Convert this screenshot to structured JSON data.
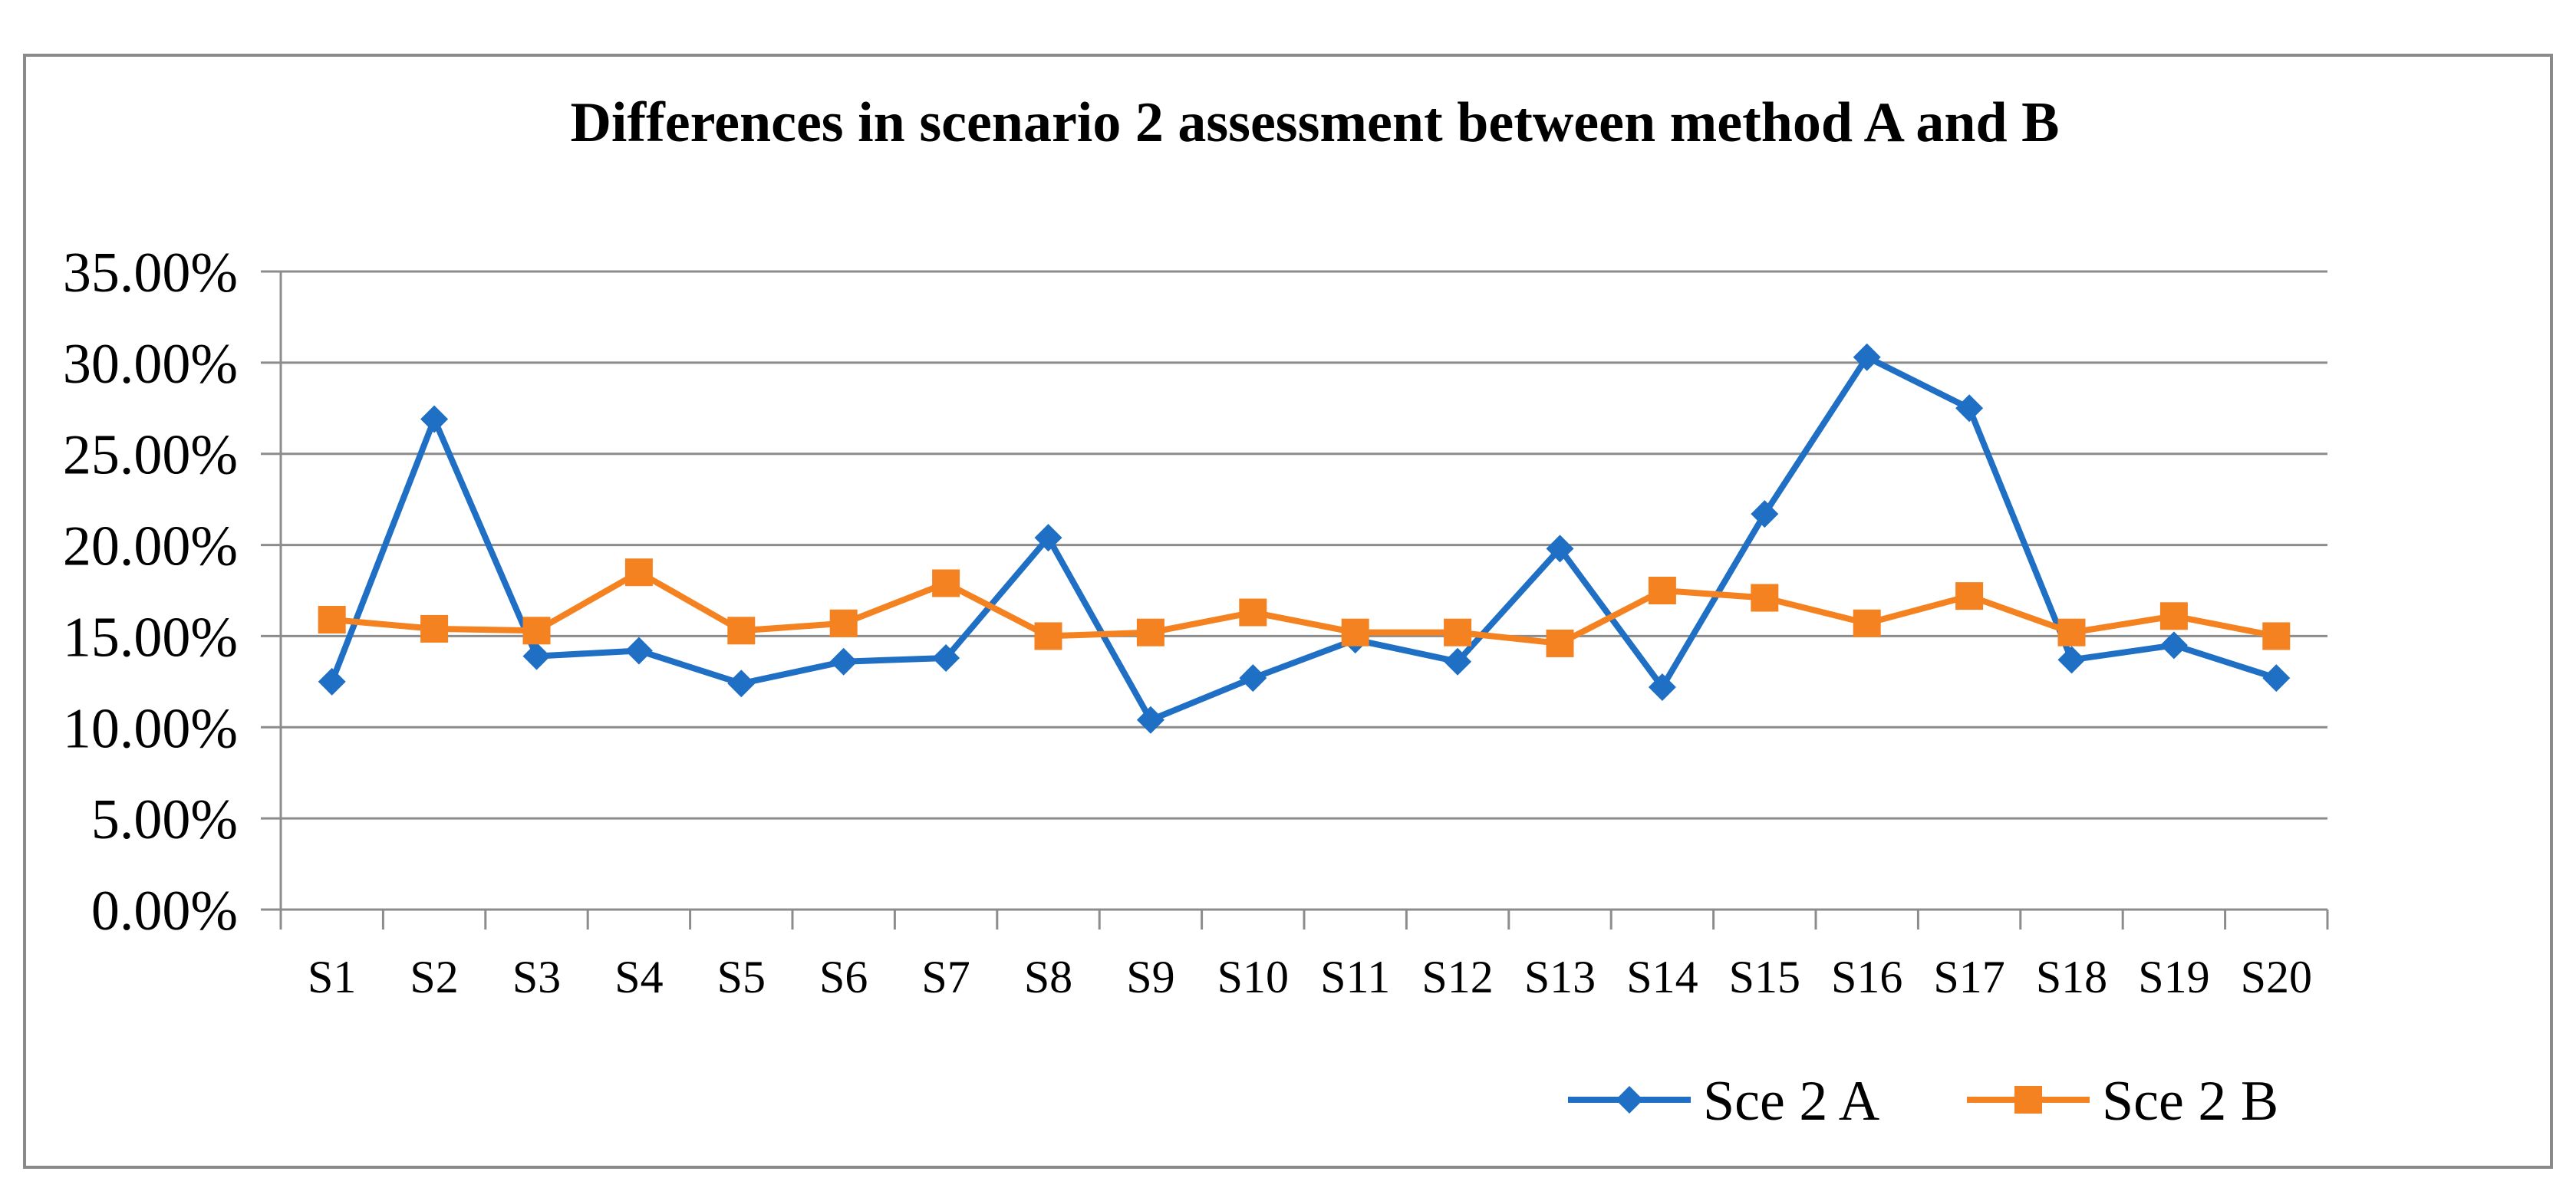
{
  "chart_data": {
    "type": "line",
    "title": "Differences in scenario 2 assessment between method A and B",
    "xlabel": "",
    "ylabel": "",
    "ylim": [
      0,
      0.35
    ],
    "ystep": 0.05,
    "yticks": [
      "0.00%",
      "5.00%",
      "10.00%",
      "15.00%",
      "20.00%",
      "25.00%",
      "30.00%",
      "35.00%"
    ],
    "categories": [
      "S1",
      "S2",
      "S3",
      "S4",
      "S5",
      "S6",
      "S7",
      "S8",
      "S9",
      "S10",
      "S11",
      "S12",
      "S13",
      "S14",
      "S15",
      "S16",
      "S17",
      "S18",
      "S19",
      "S20"
    ],
    "grid": true,
    "legend_position": "bottom-right",
    "series": [
      {
        "name": "Sce 2 A",
        "color": "#1F6FC5",
        "marker": "diamond",
        "values": [
          0.125,
          0.269,
          0.139,
          0.142,
          0.124,
          0.136,
          0.138,
          0.204,
          0.104,
          0.127,
          0.148,
          0.136,
          0.198,
          0.122,
          0.217,
          0.303,
          0.275,
          0.137,
          0.145,
          0.127
        ]
      },
      {
        "name": "Sce 2 B",
        "color": "#F58220",
        "marker": "square",
        "values": [
          0.159,
          0.154,
          0.153,
          0.185,
          0.153,
          0.157,
          0.179,
          0.15,
          0.152,
          0.163,
          0.152,
          0.152,
          0.146,
          0.175,
          0.171,
          0.157,
          0.172,
          0.152,
          0.161,
          0.15
        ]
      }
    ]
  }
}
